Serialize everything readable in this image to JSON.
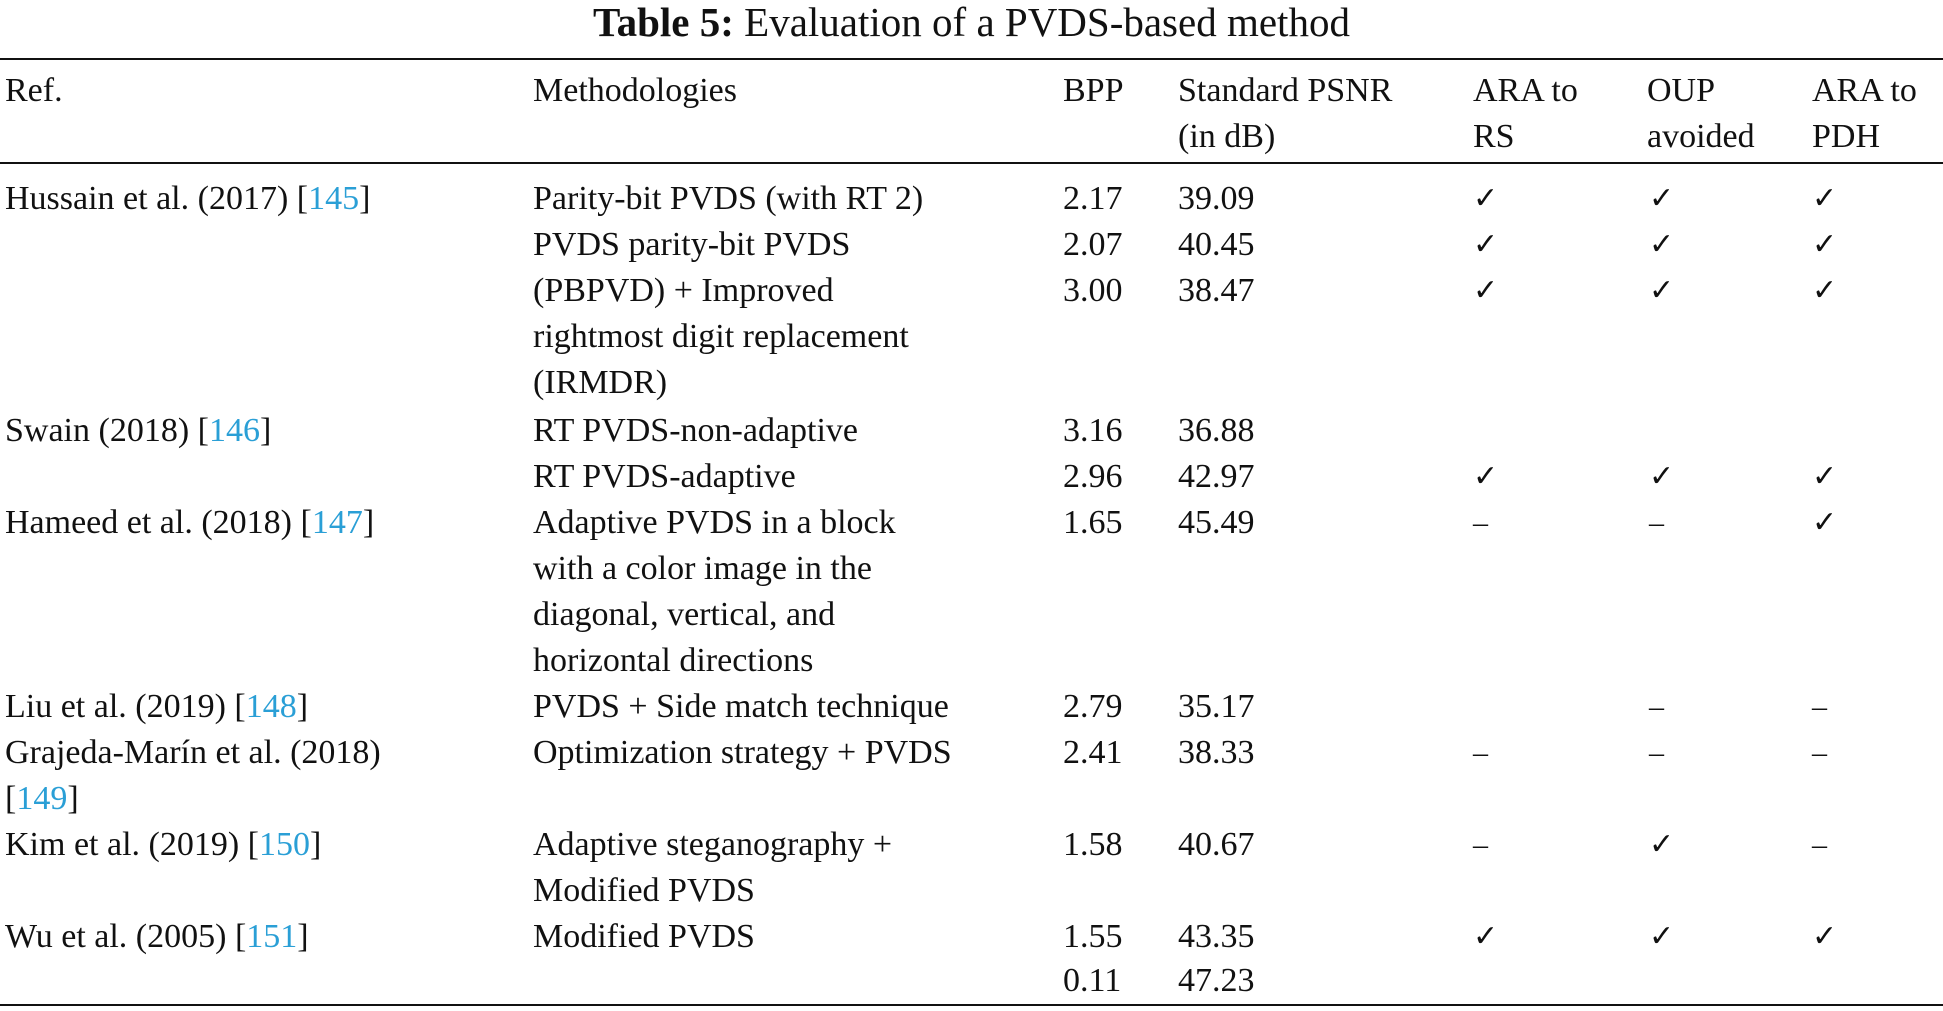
{
  "caption": {
    "label": "Table 5:",
    "title": "Evaluation of a PVDS-based method"
  },
  "headers": {
    "ref": "Ref.",
    "methodologies": "Methodologies",
    "bpp": "BPP",
    "psnr_line1": "Standard PSNR",
    "psnr_line2": "(in dB)",
    "rs_line1": "ARA to",
    "rs_line2": "RS",
    "oup_line1": "OUP",
    "oup_line2": "avoided",
    "pdh_line1": "ARA to",
    "pdh_line2": "PDH"
  },
  "symbols": {
    "check": "✓",
    "dash": "–"
  },
  "rows": [
    {
      "ref_text": "Hussain et al. (2017) [",
      "ref_num": "145",
      "ref_close": "]",
      "m1": "Parity-bit PVDS (with RT 2)",
      "bpp": "2.17",
      "psnr": "39.09"
    },
    {
      "m1": "PVDS parity-bit PVDS",
      "bpp": "2.07",
      "psnr": "40.45"
    },
    {
      "m1": "(PBPVD) + Improved",
      "m2": "rightmost digit replacement",
      "m3": "(IRMDR)",
      "bpp": "3.00",
      "psnr": "38.47"
    },
    {
      "ref_text": "Swain (2018) [",
      "ref_num": "146",
      "ref_close": "]",
      "m1": "RT PVDS-non-adaptive",
      "bpp": "3.16",
      "psnr": "36.88"
    },
    {
      "m1": "RT PVDS-adaptive",
      "bpp": "2.96",
      "psnr": "42.97"
    },
    {
      "ref_text": "Hameed et al. (2018) [",
      "ref_num": "147",
      "ref_close": "]",
      "m1": "Adaptive PVDS in a block",
      "m2": "with a color image in the",
      "m3": "diagonal, vertical, and",
      "m4": "horizontal directions",
      "bpp": "1.65",
      "psnr": "45.49"
    },
    {
      "ref_text": "Liu et al. (2019) [",
      "ref_num": "148",
      "ref_close": "]",
      "m1": "PVDS + Side match technique",
      "bpp": "2.79",
      "psnr": "35.17"
    },
    {
      "ref_text": "Grajeda-Marín et al. (2018)",
      "ref_open2": "[",
      "ref_num": "149",
      "ref_close": "]",
      "m1": "Optimization strategy + PVDS",
      "bpp": "2.41",
      "psnr": "38.33"
    },
    {
      "ref_text": "Kim et al. (2019) [",
      "ref_num": "150",
      "ref_close": "]",
      "m1": "Adaptive steganography +",
      "m2": "Modified PVDS",
      "bpp": "1.58",
      "psnr": "40.67"
    },
    {
      "ref_text": "Wu et al. (2005) [",
      "ref_num": "151",
      "ref_close": "]",
      "m1": "Modified PVDS",
      "bpp": "1.55",
      "psnr": "43.35"
    },
    {
      "bpp": "0.11",
      "psnr": "47.23"
    }
  ]
}
